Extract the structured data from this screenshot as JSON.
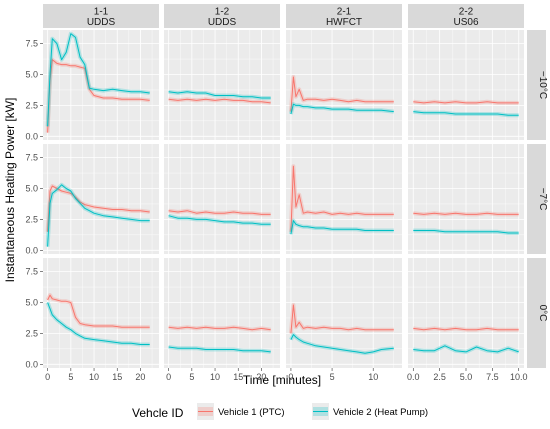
{
  "chart_data": {
    "type": "line",
    "xlabel": "Time [minutes]",
    "ylabel": "Instantaneous Heating Power [kW]",
    "y_ticks": [
      "0.0",
      "2.5",
      "5.0",
      "7.5"
    ],
    "y_tick_values": [
      0,
      2.5,
      5,
      7.5
    ],
    "ylim": [
      -0.3,
      8.6
    ],
    "grid": true,
    "columns": [
      {
        "id": "1-1",
        "cycle": "UDDS",
        "xlim": [
          -1,
          24
        ],
        "x_ticks": [
          "0",
          "5",
          "10",
          "15",
          "20"
        ],
        "x_tick_values": [
          0,
          5,
          10,
          15,
          20
        ]
      },
      {
        "id": "1-2",
        "cycle": "UDDS",
        "xlim": [
          -1,
          24
        ],
        "x_ticks": [
          "0",
          "5",
          "10",
          "15",
          "20"
        ],
        "x_tick_values": [
          0,
          5,
          10,
          15,
          20
        ]
      },
      {
        "id": "2-1",
        "cycle": "HWFCT",
        "xlim": [
          -0.6,
          13.5
        ],
        "x_ticks": [
          "0",
          "5",
          "10"
        ],
        "x_tick_values": [
          0,
          5,
          10
        ]
      },
      {
        "id": "2-2",
        "cycle": "US06",
        "xlim": [
          -0.5,
          10.5
        ],
        "x_ticks": [
          "0.0",
          "2.5",
          "5.0",
          "7.5",
          "10.0"
        ],
        "x_tick_values": [
          0,
          2.5,
          5,
          7.5,
          10
        ]
      }
    ],
    "rows": [
      "−10°C",
      "−7°C",
      "0°C"
    ],
    "legend": {
      "title": "Vehcle ID",
      "position": "bottom",
      "entries": [
        {
          "name": "Vehicle 1 (PTC)",
          "color": "#f8766d"
        },
        {
          "name": "Vehicle 2 (Heat Pump)",
          "color": "#00bfc4"
        }
      ]
    },
    "panels": [
      {
        "row": 0,
        "col": 0,
        "series": [
          {
            "vehicle": 1,
            "x": [
              0,
              0.5,
              1,
              2,
              3,
              4,
              5,
              6,
              7,
              8,
              9,
              10,
              12,
              14,
              16,
              18,
              20,
              22
            ],
            "y": [
              0.3,
              4.5,
              6.2,
              5.9,
              5.8,
              5.8,
              5.7,
              5.7,
              5.6,
              5.5,
              3.8,
              3.3,
              3.1,
              3.1,
              3.0,
              3.0,
              3.0,
              2.9
            ]
          },
          {
            "vehicle": 2,
            "x": [
              0,
              0.5,
              1,
              2,
              3,
              4,
              5,
              6,
              7,
              8,
              9,
              10,
              12,
              14,
              16,
              18,
              20,
              22
            ],
            "y": [
              0.8,
              5.0,
              7.9,
              7.5,
              6.2,
              6.8,
              8.3,
              8.0,
              6.4,
              5.8,
              3.9,
              3.8,
              3.7,
              3.8,
              3.7,
              3.6,
              3.6,
              3.5
            ]
          }
        ]
      },
      {
        "row": 0,
        "col": 1,
        "series": [
          {
            "vehicle": 1,
            "x": [
              0,
              2,
              4,
              6,
              8,
              10,
              12,
              14,
              16,
              18,
              20,
              22
            ],
            "y": [
              3.0,
              2.9,
              3.0,
              2.9,
              3.0,
              2.9,
              3.0,
              2.9,
              2.9,
              2.8,
              2.8,
              2.7
            ]
          },
          {
            "vehicle": 2,
            "x": [
              0,
              2,
              4,
              6,
              8,
              10,
              12,
              14,
              16,
              18,
              20,
              22
            ],
            "y": [
              3.6,
              3.5,
              3.6,
              3.5,
              3.5,
              3.3,
              3.3,
              3.3,
              3.2,
              3.2,
              3.1,
              3.1
            ]
          }
        ]
      },
      {
        "row": 0,
        "col": 2,
        "series": [
          {
            "vehicle": 1,
            "x": [
              0,
              0.3,
              0.6,
              1,
              1.5,
              2,
              3,
              4,
              5,
              6,
              7,
              8,
              9,
              10,
              11,
              12.5
            ],
            "y": [
              2.0,
              4.8,
              3.2,
              3.8,
              2.9,
              3.0,
              3.0,
              2.9,
              3.0,
              2.9,
              2.8,
              2.9,
              2.8,
              2.8,
              2.8,
              2.8
            ]
          },
          {
            "vehicle": 2,
            "x": [
              0,
              0.3,
              0.6,
              1,
              1.5,
              2,
              3,
              4,
              5,
              6,
              7,
              8,
              9,
              10,
              11,
              12.5
            ],
            "y": [
              1.8,
              2.6,
              2.5,
              2.5,
              2.4,
              2.4,
              2.3,
              2.3,
              2.2,
              2.2,
              2.2,
              2.1,
              2.1,
              2.1,
              2.1,
              2.0
            ]
          }
        ]
      },
      {
        "row": 0,
        "col": 3,
        "series": [
          {
            "vehicle": 1,
            "x": [
              0,
              1,
              2,
              3,
              4,
              5,
              6,
              7,
              8,
              9,
              10
            ],
            "y": [
              2.8,
              2.7,
              2.8,
              2.7,
              2.8,
              2.7,
              2.7,
              2.8,
              2.7,
              2.7,
              2.7
            ]
          },
          {
            "vehicle": 2,
            "x": [
              0,
              1,
              2,
              3,
              4,
              5,
              6,
              7,
              8,
              9,
              10
            ],
            "y": [
              2.0,
              1.9,
              1.9,
              1.9,
              1.8,
              1.8,
              1.8,
              1.8,
              1.8,
              1.7,
              1.7
            ]
          }
        ]
      },
      {
        "row": 1,
        "col": 0,
        "series": [
          {
            "vehicle": 1,
            "x": [
              0,
              0.5,
              1,
              2,
              3,
              4,
              5,
              6,
              7,
              8,
              9,
              10,
              12,
              14,
              16,
              18,
              20,
              22
            ],
            "y": [
              1.5,
              4.8,
              5.2,
              5.0,
              4.8,
              4.7,
              4.6,
              4.3,
              3.9,
              3.7,
              3.6,
              3.5,
              3.4,
              3.3,
              3.3,
              3.2,
              3.2,
              3.1
            ]
          },
          {
            "vehicle": 2,
            "x": [
              0,
              0.5,
              1,
              2,
              3,
              4,
              5,
              6,
              7,
              8,
              9,
              10,
              12,
              14,
              16,
              18,
              20,
              22
            ],
            "y": [
              0.3,
              3.8,
              4.6,
              4.9,
              5.3,
              5.0,
              4.8,
              4.2,
              3.8,
              3.4,
              3.2,
              3.0,
              2.8,
              2.7,
              2.6,
              2.5,
              2.4,
              2.4
            ]
          }
        ]
      },
      {
        "row": 1,
        "col": 1,
        "series": [
          {
            "vehicle": 1,
            "x": [
              0,
              2,
              4,
              6,
              8,
              10,
              12,
              14,
              16,
              18,
              20,
              22
            ],
            "y": [
              3.2,
              3.1,
              3.2,
              3.0,
              3.1,
              3.0,
              3.0,
              3.1,
              3.0,
              3.0,
              2.9,
              2.9
            ]
          },
          {
            "vehicle": 2,
            "x": [
              0,
              2,
              4,
              6,
              8,
              10,
              12,
              14,
              16,
              18,
              20,
              22
            ],
            "y": [
              2.8,
              2.6,
              2.6,
              2.5,
              2.5,
              2.4,
              2.3,
              2.3,
              2.2,
              2.2,
              2.1,
              2.1
            ]
          }
        ]
      },
      {
        "row": 1,
        "col": 2,
        "series": [
          {
            "vehicle": 1,
            "x": [
              0,
              0.3,
              0.6,
              1,
              1.5,
              2,
              3,
              4,
              5,
              6,
              7,
              8,
              9,
              10,
              11,
              12.5
            ],
            "y": [
              1.5,
              6.8,
              3.5,
              4.5,
              3.0,
              3.1,
              3.0,
              3.1,
              2.9,
              3.0,
              2.9,
              3.0,
              2.9,
              2.9,
              2.9,
              2.9
            ]
          },
          {
            "vehicle": 2,
            "x": [
              0,
              0.3,
              0.6,
              1,
              1.5,
              2,
              3,
              4,
              5,
              6,
              7,
              8,
              9,
              10,
              11,
              12.5
            ],
            "y": [
              1.3,
              2.4,
              2.1,
              2.0,
              1.9,
              1.9,
              1.8,
              1.8,
              1.7,
              1.7,
              1.7,
              1.7,
              1.6,
              1.6,
              1.6,
              1.6
            ]
          }
        ]
      },
      {
        "row": 1,
        "col": 3,
        "series": [
          {
            "vehicle": 1,
            "x": [
              0,
              1,
              2,
              3,
              4,
              5,
              6,
              7,
              8,
              9,
              10
            ],
            "y": [
              3.0,
              2.9,
              3.0,
              2.9,
              3.0,
              2.9,
              2.9,
              3.0,
              2.9,
              2.9,
              2.9
            ]
          },
          {
            "vehicle": 2,
            "x": [
              0,
              1,
              2,
              3,
              4,
              5,
              6,
              7,
              8,
              9,
              10
            ],
            "y": [
              1.6,
              1.6,
              1.6,
              1.5,
              1.5,
              1.5,
              1.5,
              1.5,
              1.5,
              1.4,
              1.4
            ]
          }
        ]
      },
      {
        "row": 2,
        "col": 0,
        "series": [
          {
            "vehicle": 1,
            "x": [
              0,
              0.5,
              1,
              2,
              3,
              4,
              5,
              6,
              7,
              8,
              10,
              12,
              14,
              16,
              18,
              20,
              22
            ],
            "y": [
              5.2,
              5.6,
              5.3,
              5.2,
              5.1,
              5.1,
              5.0,
              3.8,
              3.3,
              3.2,
              3.1,
              3.1,
              3.1,
              3.0,
              3.0,
              3.0,
              3.0
            ]
          },
          {
            "vehicle": 2,
            "x": [
              0,
              0.5,
              1,
              2,
              3,
              4,
              5,
              6,
              7,
              8,
              10,
              12,
              14,
              16,
              18,
              20,
              22
            ],
            "y": [
              5.0,
              4.5,
              4.0,
              3.6,
              3.3,
              3.0,
              2.8,
              2.5,
              2.3,
              2.1,
              2.0,
              1.9,
              1.8,
              1.7,
              1.7,
              1.6,
              1.6
            ]
          }
        ]
      },
      {
        "row": 2,
        "col": 1,
        "series": [
          {
            "vehicle": 1,
            "x": [
              0,
              2,
              4,
              6,
              8,
              10,
              12,
              14,
              16,
              18,
              20,
              22
            ],
            "y": [
              3.0,
              2.9,
              3.0,
              2.9,
              3.0,
              2.9,
              2.9,
              3.0,
              2.9,
              2.8,
              2.9,
              2.8
            ]
          },
          {
            "vehicle": 2,
            "x": [
              0,
              2,
              4,
              6,
              8,
              10,
              12,
              14,
              16,
              18,
              20,
              22
            ],
            "y": [
              1.4,
              1.3,
              1.3,
              1.3,
              1.2,
              1.2,
              1.2,
              1.2,
              1.1,
              1.1,
              1.1,
              1.0
            ]
          }
        ]
      },
      {
        "row": 2,
        "col": 2,
        "series": [
          {
            "vehicle": 1,
            "x": [
              0,
              0.3,
              0.6,
              1,
              1.5,
              2,
              3,
              4,
              5,
              6,
              7,
              8,
              9,
              10,
              11,
              12.5
            ],
            "y": [
              2.5,
              4.8,
              3.0,
              3.4,
              2.9,
              3.0,
              2.9,
              3.0,
              2.9,
              2.9,
              2.8,
              2.9,
              2.8,
              2.8,
              2.8,
              2.8
            ]
          },
          {
            "vehicle": 2,
            "x": [
              0,
              0.3,
              0.6,
              1,
              1.5,
              2,
              3,
              4,
              5,
              6,
              7,
              8,
              9,
              10,
              11,
              12.5
            ],
            "y": [
              2.0,
              2.4,
              2.2,
              2.0,
              1.8,
              1.7,
              1.5,
              1.4,
              1.3,
              1.2,
              1.1,
              1.0,
              0.9,
              1.0,
              1.2,
              1.3
            ]
          }
        ]
      },
      {
        "row": 2,
        "col": 3,
        "series": [
          {
            "vehicle": 1,
            "x": [
              0,
              1,
              2,
              3,
              4,
              5,
              6,
              7,
              8,
              9,
              10
            ],
            "y": [
              2.9,
              2.8,
              2.9,
              2.8,
              2.9,
              2.8,
              2.8,
              2.9,
              2.8,
              2.8,
              2.8
            ]
          },
          {
            "vehicle": 2,
            "x": [
              0,
              1,
              2,
              3,
              4,
              5,
              6,
              7,
              8,
              9,
              10
            ],
            "y": [
              1.2,
              1.1,
              1.1,
              1.5,
              1.1,
              1.0,
              1.4,
              1.1,
              1.0,
              1.3,
              1.0
            ]
          }
        ]
      }
    ]
  }
}
